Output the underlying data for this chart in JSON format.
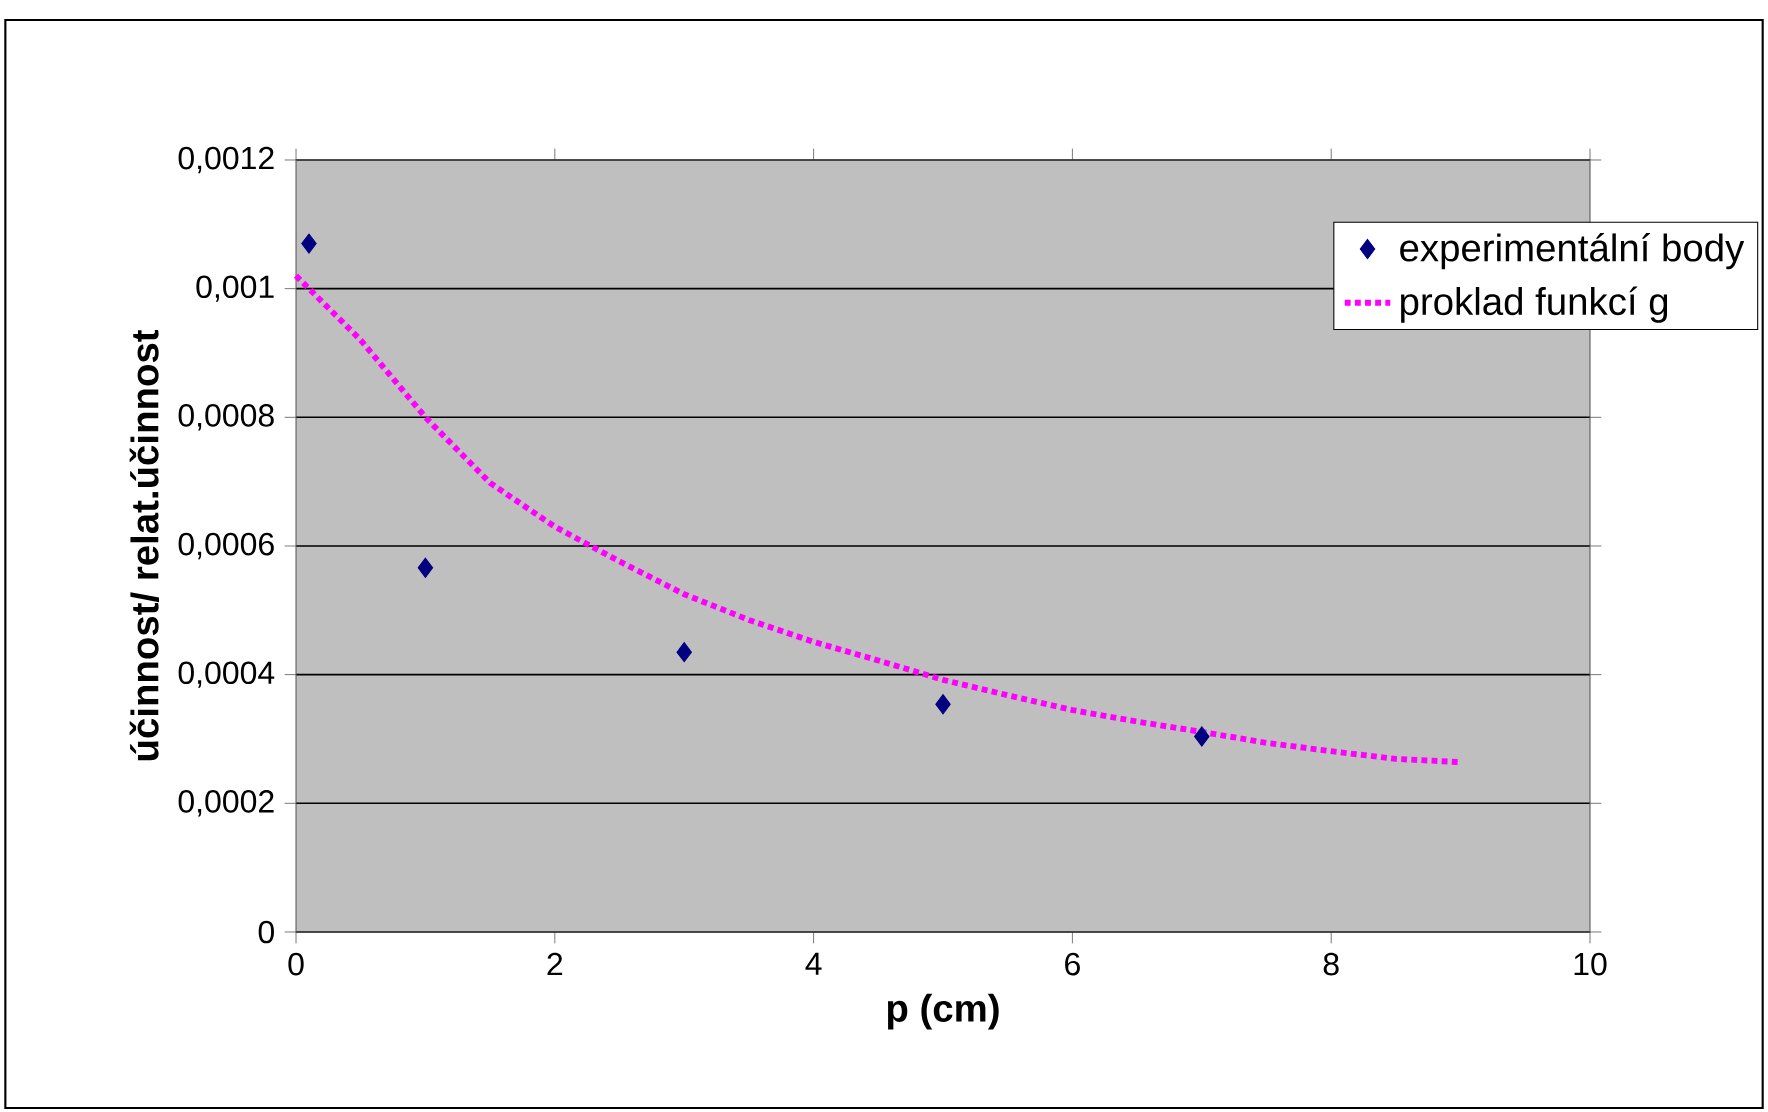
{
  "chart_data": {
    "type": "scatter",
    "xlabel": "p (cm)",
    "ylabel": "účinnost/ relat.účinnost",
    "xlim": [
      0,
      10
    ],
    "ylim": [
      0,
      0.0012
    ],
    "xticks": [
      0,
      2,
      4,
      6,
      8,
      10
    ],
    "yticks": [
      {
        "value": 0,
        "label": "0"
      },
      {
        "value": 0.0002,
        "label": "0,0002"
      },
      {
        "value": 0.0004,
        "label": "0,0004"
      },
      {
        "value": 0.0006,
        "label": "0,0006"
      },
      {
        "value": 0.0008,
        "label": "0,0008"
      },
      {
        "value": 0.001,
        "label": "0,001"
      },
      {
        "value": 0.0012,
        "label": "0,0012"
      }
    ],
    "grid": "y",
    "legend": "top right",
    "series": [
      {
        "name": "experimentální body",
        "marker": "diamond",
        "color": "#000080",
        "x": [
          0.1,
          1,
          3,
          5,
          7
        ],
        "values": [
          0.00107,
          0.000566,
          0.000435,
          0.000354,
          0.000304
        ]
      },
      {
        "name": "proklad funkcí g",
        "type": "line",
        "line_style": "dotted",
        "marker": "none",
        "color": "#ff00ff",
        "x": [
          0,
          0.5,
          1,
          1.5,
          2,
          2.5,
          3,
          3.5,
          4,
          4.5,
          5,
          5.5,
          6,
          6.5,
          7,
          7.5,
          8,
          8.5,
          9
        ],
        "values": [
          0.00102,
          0.00092,
          0.0008,
          0.000698,
          0.00063,
          0.000576,
          0.000525,
          0.000485,
          0.000451,
          0.000422,
          0.000392,
          0.000368,
          0.000345,
          0.000327,
          0.000311,
          0.000294,
          0.000281,
          0.000269,
          0.000264
        ]
      }
    ]
  }
}
